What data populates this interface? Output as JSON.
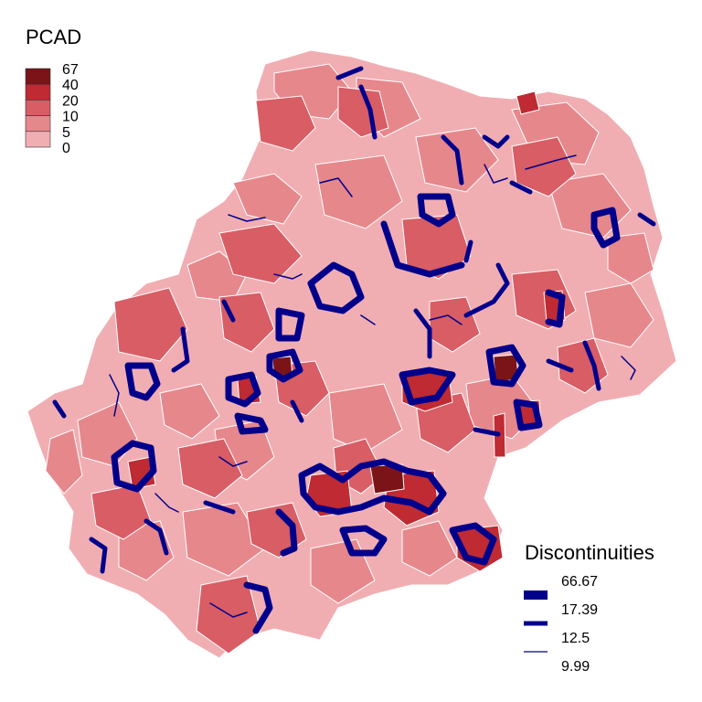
{
  "legend_fill": {
    "title": "PCAD",
    "classes": [
      {
        "label": "67",
        "color": "#7a1418"
      },
      {
        "label": "40",
        "color": "#bf2a33"
      },
      {
        "label": "20",
        "color": "#d85d65"
      },
      {
        "label": "10",
        "color": "#e6878c"
      },
      {
        "label": "5",
        "color": "#f1aeb2"
      },
      {
        "label": "0",
        "color": "#f1aeb2"
      }
    ]
  },
  "legend_lines": {
    "title": "Discontinuities",
    "items": [
      {
        "label": "66.67",
        "color": "#00008b",
        "level": "heaviest"
      },
      {
        "label": "17.39",
        "color": "#00008b",
        "level": "heavy"
      },
      {
        "label": "12.5",
        "color": "#00008b",
        "level": "thin"
      },
      {
        "label": "9.99",
        "color": "#00008b",
        "level": "none"
      }
    ]
  },
  "map": {
    "background": "#ffffff",
    "boundary_color": "#ffffff",
    "discontinuity_color": "#00008b"
  }
}
